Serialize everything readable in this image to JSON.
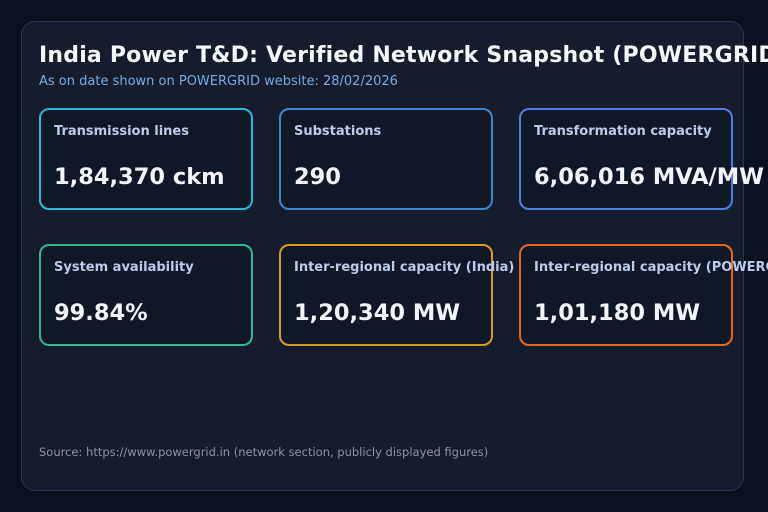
{
  "page": {
    "title": "India Power T&D: Verified Network Snapshot (POWERGRID)",
    "subtitle": "As on date shown on POWERGRID website: 28/02/2026",
    "source_note": "Source: https://www.powergrid.in (network section, publicly displayed figures)"
  },
  "colors": {
    "page_bg": "#0c111f",
    "panel_bg": "#151c2e",
    "panel_border": "#2b3450",
    "card_bg": "#101827",
    "title_text": "#f5f7fb",
    "subtitle_text": "#74abe6",
    "label_text": "#bccaec",
    "value_text": "#f3f5fa",
    "source_text": "#8a93a8"
  },
  "cards": [
    {
      "label": "Transmission lines",
      "value": "1,84,370 ckm",
      "accent": "#2ab7d9"
    },
    {
      "label": "Substations",
      "value": "290",
      "accent": "#3f86cf"
    },
    {
      "label": "Transformation capacity",
      "value": "6,06,016 MVA/MW",
      "accent": "#4d7fe3"
    },
    {
      "label": "System availability",
      "value": "99.84%",
      "accent": "#2fb98c"
    },
    {
      "label": "Inter-regional capacity (India)",
      "value": "1,20,340 MW",
      "accent": "#dd9a21"
    },
    {
      "label": "Inter-regional capacity (POWERGRID)",
      "value": "1,01,180 MW",
      "accent": "#e2691c"
    }
  ],
  "chart_data": {
    "type": "table",
    "title": "India Power T&D: Verified Network Snapshot (POWERGRID)",
    "subtitle": "As on date shown on POWERGRID website: 28/02/2026",
    "categories": [
      "Transmission lines",
      "Substations",
      "Transformation capacity",
      "System availability",
      "Inter-regional capacity (India)",
      "Inter-regional capacity (POWERGRID)"
    ],
    "values": [
      184370,
      290,
      606016,
      99.84,
      120340,
      101180
    ],
    "display_values": [
      "1,84,370 ckm",
      "290",
      "6,06,016 MVA/MW",
      "99.84%",
      "1,20,340 MW",
      "1,01,180 MW"
    ],
    "units": [
      "ckm",
      "count",
      "MVA/MW",
      "%",
      "MW",
      "MW"
    ],
    "source": "Source: https://www.powergrid.in (network section, publicly displayed figures)"
  }
}
